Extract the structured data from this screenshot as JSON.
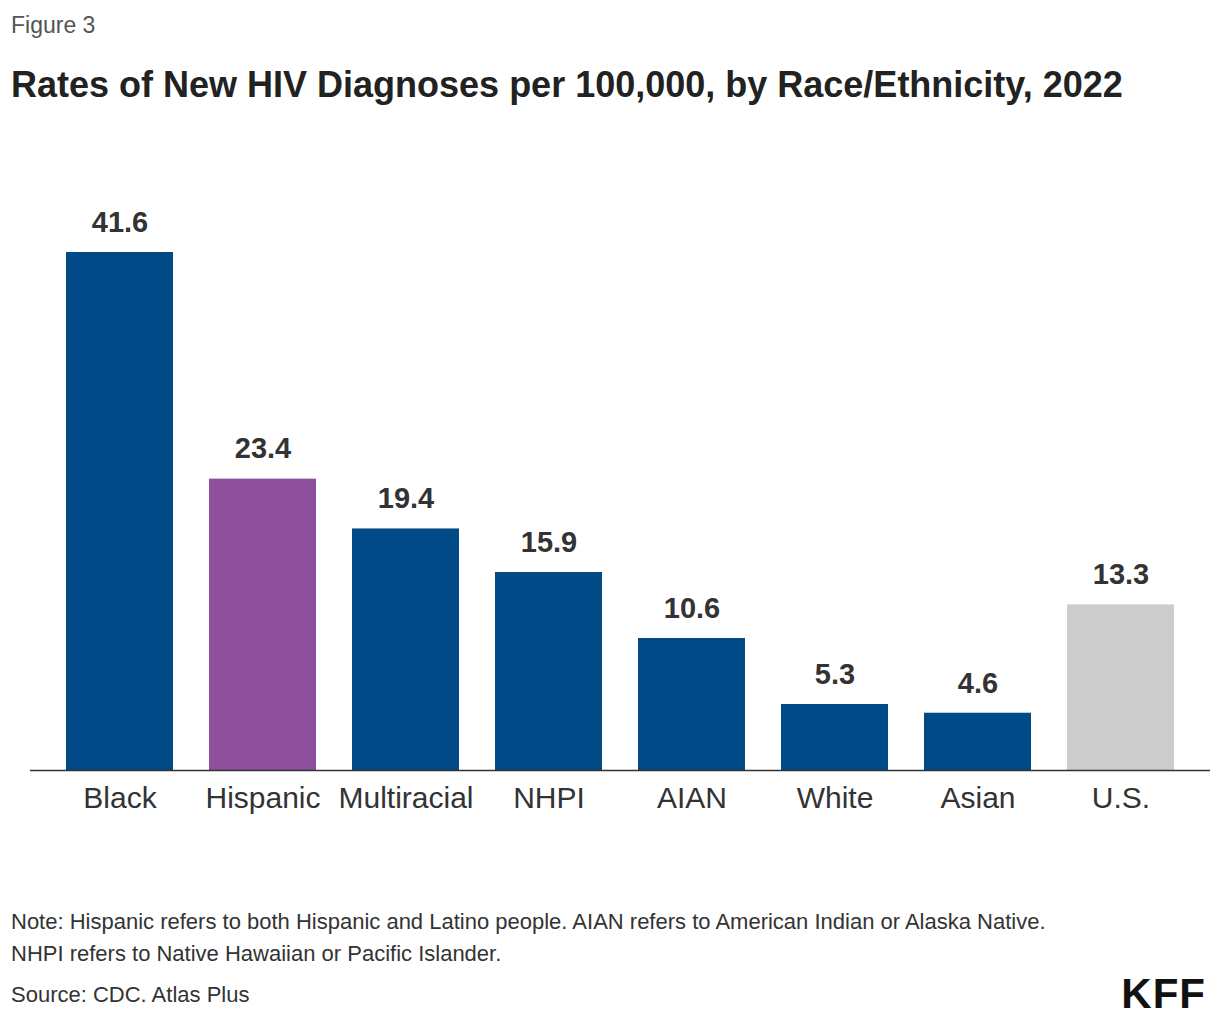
{
  "chart_data": {
    "type": "bar",
    "title": "Rates of New HIV Diagnoses per 100,000, by Race/Ethnicity, 2022",
    "annotations": {
      "figure": "Figure 3",
      "note": "Note: Hispanic refers to both Hispanic and Latino people. AIAN refers to American Indian or Alaska Native. NHPI refers to Native Hawaiian or Pacific Islander.",
      "source": "Source: CDC. Atlas Plus",
      "logo": "KFF"
    },
    "categories": [
      "Black",
      "Hispanic",
      "Multiracial",
      "NHPI",
      "AIAN",
      "White",
      "Asian",
      "U.S."
    ],
    "values": [
      41.6,
      23.4,
      19.4,
      15.9,
      10.6,
      5.3,
      4.6,
      13.3
    ],
    "colors": [
      "#004b87",
      "#8e4f9c",
      "#004b87",
      "#004b87",
      "#004b87",
      "#004b87",
      "#004b87",
      "#cccccc"
    ],
    "ylim": [
      0,
      41.6
    ],
    "grid": false,
    "data_labels": true,
    "tick_labels": "x"
  }
}
